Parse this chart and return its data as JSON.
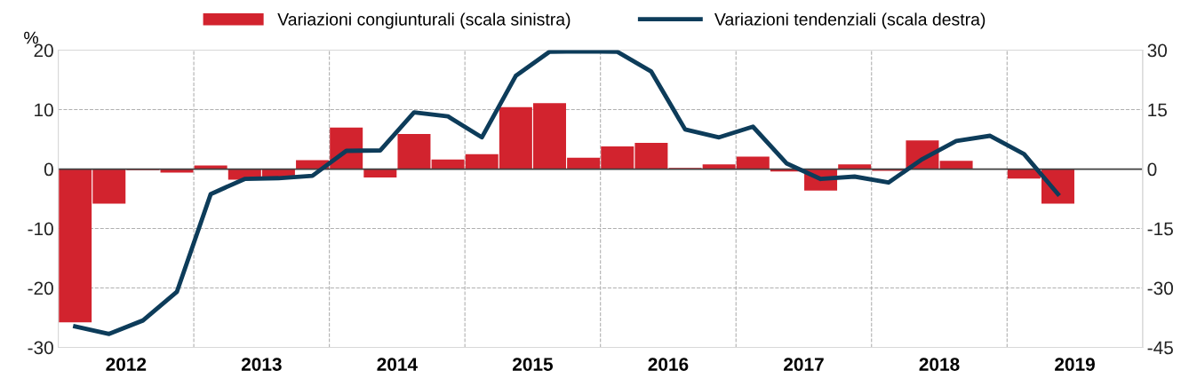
{
  "chart_data": {
    "type": "bar",
    "ylabel": "%",
    "x": [
      2012.125,
      2012.375,
      2012.625,
      2012.875,
      2013.125,
      2013.375,
      2013.625,
      2013.875,
      2014.125,
      2014.375,
      2014.625,
      2014.875,
      2015.125,
      2015.375,
      2015.625,
      2015.875,
      2016.125,
      2016.375,
      2016.625,
      2016.875,
      2017.125,
      2017.375,
      2017.625,
      2017.875,
      2018.125,
      2018.375,
      2018.625,
      2018.875,
      2019.125,
      2019.375
    ],
    "series": [
      {
        "name": "Variazioni congiunturali (scala sinistra)",
        "color": "#d2232e",
        "values": [
          -25.8,
          -5.8,
          -0.2,
          -0.6,
          0.6,
          -1.8,
          -1.4,
          1.5,
          7.0,
          -1.4,
          5.9,
          1.6,
          2.5,
          10.4,
          11.1,
          1.9,
          3.8,
          4.4,
          0.2,
          0.8,
          2.1,
          -0.4,
          -3.6,
          0.8,
          -0.3,
          4.8,
          1.4,
          0,
          -1.6,
          -5.8
        ]
      },
      {
        "name": "Variazioni tendenziali (scala destra)",
        "type": "line",
        "axis": "y2",
        "color": "#0d3c5a",
        "values": [
          -39.7,
          -41.6,
          -38.2,
          -31.0,
          -6.3,
          -2.5,
          -2.3,
          -1.7,
          4.6,
          4.7,
          14.3,
          13.3,
          8.0,
          23.5,
          29.6,
          29.7,
          29.6,
          24.6,
          10.0,
          8.0,
          10.7,
          1.4,
          -2.5,
          -1.9,
          -3.4,
          2.5,
          7.1,
          8.4,
          3.8,
          -6.3
        ]
      }
    ],
    "xlim": [
      2012,
      2020
    ],
    "xticks": [
      {
        "value": 2012.5,
        "label": "2012"
      },
      {
        "value": 2013.5,
        "label": "2013"
      },
      {
        "value": 2014.5,
        "label": "2014"
      },
      {
        "value": 2015.5,
        "label": "2015"
      },
      {
        "value": 2016.5,
        "label": "2016"
      },
      {
        "value": 2017.5,
        "label": "2017"
      },
      {
        "value": 2018.5,
        "label": "2018"
      },
      {
        "value": 2019.5,
        "label": "2019"
      }
    ],
    "ylim": [
      -30,
      20
    ],
    "yticks": [
      -30,
      -20,
      -10,
      0,
      10,
      20
    ],
    "y2lim": [
      -45,
      30
    ],
    "y2ticks": [
      -45,
      -30,
      -15,
      0,
      15,
      30
    ],
    "ref_lines": [
      {
        "axis": "y",
        "value": 0,
        "color": "#404040"
      },
      {
        "axis": "x",
        "value": 2013,
        "color": "#b0b0b0",
        "line_style": "dashed"
      },
      {
        "axis": "x",
        "value": 2014,
        "color": "#b0b0b0",
        "line_style": "dashed"
      },
      {
        "axis": "x",
        "value": 2015,
        "color": "#b0b0b0",
        "line_style": "dashed"
      },
      {
        "axis": "x",
        "value": 2016,
        "color": "#b0b0b0",
        "line_style": "dashed"
      },
      {
        "axis": "x",
        "value": 2017,
        "color": "#b0b0b0",
        "line_style": "dashed"
      },
      {
        "axis": "x",
        "value": 2018,
        "color": "#b0b0b0",
        "line_style": "dashed"
      },
      {
        "axis": "x",
        "value": 2019,
        "color": "#b0b0b0",
        "line_style": "dashed"
      }
    ],
    "grid": "y",
    "legend": "top",
    "marker": "none",
    "line_style": "solid"
  }
}
